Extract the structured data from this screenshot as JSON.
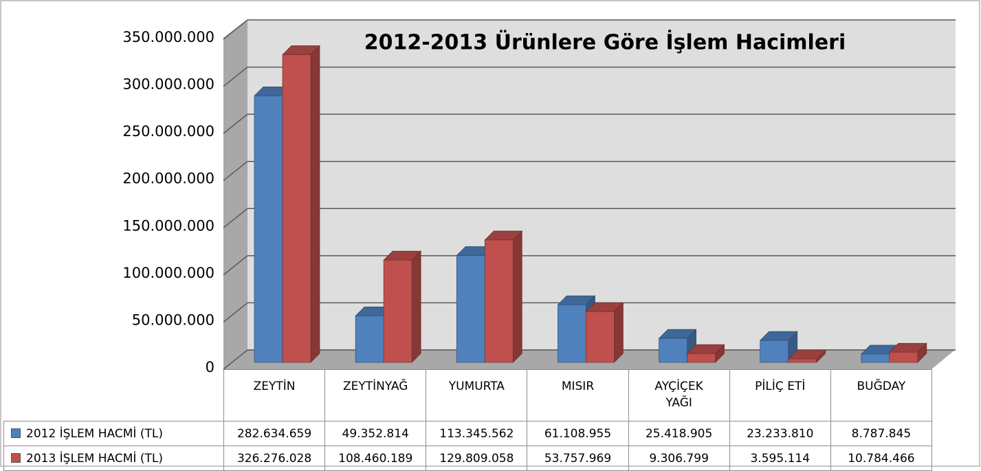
{
  "chart_data": {
    "type": "bar",
    "title": "2012-2013 Ürünlere Göre İşlem Hacimleri",
    "categories": [
      "ZEYTİN",
      "ZEYTİNYAĞ",
      "YUMURTA",
      "MISIR",
      "AYÇİÇEK YAĞI",
      "PİLİÇ ETİ",
      "BUĞDAY"
    ],
    "series": [
      {
        "name": "2012 İŞLEM HACMİ (TL)",
        "color": "#4f81bd",
        "values": [
          282634659,
          49352814,
          113345562,
          61108955,
          25418905,
          23233810,
          8787845
        ],
        "value_labels": [
          "282.634.659",
          "49.352.814",
          "113.345.562",
          "61.108.955",
          "25.418.905",
          "23.233.810",
          "8.787.845"
        ]
      },
      {
        "name": "2013 İŞLEM HACMİ (TL)",
        "color": "#c0504d",
        "values": [
          326276028,
          108460189,
          129809058,
          53757969,
          9306799,
          3595114,
          10784466
        ],
        "value_labels": [
          "326.276.028",
          "108.460.189",
          "129.809.058",
          "53.757.969",
          "9.306.799",
          "3.595.114",
          "10.784.466"
        ]
      }
    ],
    "ylim": [
      0,
      350000000
    ],
    "yticks": [
      0,
      {
        "value": 50000000,
        "label": "50.000.000"
      },
      {
        "value": 100000000,
        "label": "100.000.000"
      },
      {
        "value": 150000000,
        "label": "150.000.000"
      },
      {
        "value": 200000000,
        "label": "200.000.000"
      },
      {
        "value": 250000000,
        "label": "250.000.000"
      },
      {
        "value": 300000000,
        "label": "300.000.000"
      },
      {
        "value": 350000000,
        "label": "350.000.000"
      }
    ],
    "grid": true
  }
}
